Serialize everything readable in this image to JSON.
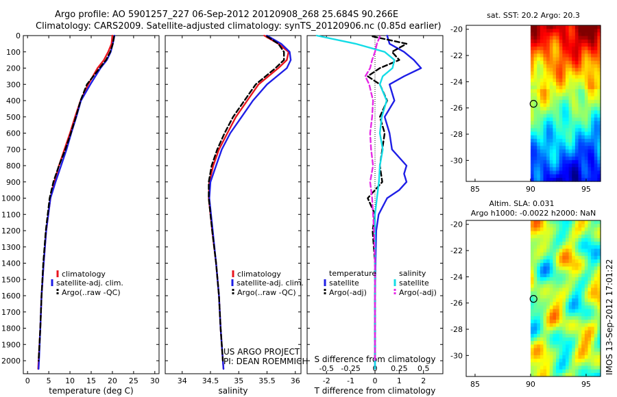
{
  "header": {
    "line1": "Argo profile: AO 5901257_227 06-Sep-2012 20120908_268 25.684S 90.266E",
    "line2": "Climatology: CARS2009. Satellite-adjusted climatology: synTS_20120906.nc (0.85d earlier)"
  },
  "footer": {
    "project": "US ARGO PROJECT",
    "pi": "PI: DEAN ROEMMICH",
    "stamp": "IMOS 13-Sep-2012 17:01:22"
  },
  "colors": {
    "climatology": "#e8141e",
    "satellite_adj": "#1e1ee6",
    "argo": "#000000",
    "salinity_sat": "#14dce6",
    "salinity_argo": "#e628e6"
  },
  "chart_data": [
    {
      "type": "line",
      "id": "temperature",
      "xlabel": "temperature (deg C)",
      "ylabel": "",
      "xlim": [
        -1,
        31
      ],
      "ylim": [
        2080,
        0
      ],
      "xticks": [
        0,
        5,
        10,
        15,
        20,
        25,
        30
      ],
      "yticks": [
        0,
        100,
        200,
        300,
        400,
        500,
        600,
        700,
        800,
        900,
        1000,
        1100,
        1200,
        1300,
        1400,
        1500,
        1600,
        1700,
        1800,
        1900,
        2000
      ],
      "legend": [
        "climatology",
        "satellite-adj. clim.",
        "Argo(..raw -QC)"
      ],
      "series": [
        {
          "name": "climatology",
          "style": "solid",
          "depth": [
            0,
            50,
            100,
            150,
            200,
            300,
            400,
            500,
            600,
            700,
            800,
            900,
            1000,
            1200,
            1400,
            1600,
            1800,
            2000,
            2050
          ],
          "values": [
            20.0,
            19.8,
            19.0,
            18.0,
            16.5,
            14.3,
            12.5,
            11.2,
            10.0,
            8.7,
            7.4,
            6.3,
            5.4,
            4.4,
            3.8,
            3.3,
            3.0,
            2.6,
            2.5
          ]
        },
        {
          "name": "satellite-adj. clim.",
          "style": "solid",
          "depth": [
            0,
            50,
            100,
            150,
            200,
            300,
            400,
            500,
            600,
            700,
            800,
            900,
            1000,
            1200,
            1400,
            1600,
            1800,
            2000,
            2050
          ],
          "values": [
            20.5,
            20.1,
            19.6,
            18.7,
            17.2,
            14.8,
            12.6,
            11.5,
            10.3,
            9.2,
            7.9,
            6.6,
            5.4,
            4.4,
            3.8,
            3.3,
            3.0,
            2.7,
            2.6
          ]
        },
        {
          "name": "Argo(..raw -QC)",
          "style": "dash",
          "depth": [
            5,
            50,
            100,
            150,
            200,
            300,
            400,
            500,
            600,
            700,
            800,
            900,
            1000,
            1200,
            1400,
            1600,
            1800,
            2000
          ],
          "values": [
            20.4,
            20.1,
            19.5,
            18.5,
            17.0,
            14.0,
            12.5,
            11.4,
            10.2,
            8.9,
            7.4,
            6.1,
            5.2,
            4.3,
            3.7,
            3.3,
            3.0,
            2.6
          ]
        }
      ]
    },
    {
      "type": "line",
      "id": "salinity",
      "xlabel": "salinity",
      "ylabel": "",
      "xlim": [
        33.7,
        36.1
      ],
      "ylim": [
        2080,
        0
      ],
      "xticks": [
        34,
        34.5,
        35,
        35.5,
        36
      ],
      "legend": [
        "climatology",
        "satellite-adj. clim.",
        "Argo(..raw -QC)"
      ],
      "series": [
        {
          "name": "climatology",
          "style": "solid",
          "depth": [
            0,
            50,
            100,
            150,
            200,
            300,
            400,
            500,
            600,
            700,
            800,
            900,
            1000,
            1200,
            1400,
            1600,
            1800,
            2000,
            2050
          ],
          "values": [
            35.45,
            35.7,
            35.88,
            35.85,
            35.7,
            35.35,
            35.15,
            34.95,
            34.8,
            34.65,
            34.55,
            34.48,
            34.47,
            34.53,
            34.6,
            34.65,
            34.68,
            34.72,
            34.73
          ]
        },
        {
          "name": "satellite-adj. clim.",
          "style": "solid",
          "depth": [
            0,
            50,
            100,
            150,
            200,
            300,
            400,
            500,
            600,
            700,
            800,
            900,
            1000,
            1200,
            1400,
            1600,
            1800,
            2000,
            2050
          ],
          "values": [
            35.5,
            35.75,
            35.9,
            35.92,
            35.85,
            35.5,
            35.25,
            35.05,
            34.85,
            34.7,
            34.6,
            34.5,
            34.48,
            34.54,
            34.6,
            34.65,
            34.68,
            34.72,
            34.73
          ]
        },
        {
          "name": "Argo(..raw -QC)",
          "style": "dash",
          "depth": [
            5,
            50,
            100,
            150,
            200,
            300,
            400,
            500,
            600,
            700,
            800,
            900,
            1000,
            1200,
            1400,
            1600,
            1800,
            2000
          ],
          "values": [
            35.5,
            35.7,
            35.8,
            35.8,
            35.65,
            35.3,
            35.1,
            34.9,
            34.75,
            34.62,
            34.52,
            34.47,
            34.47,
            34.53,
            34.6,
            34.65,
            34.68,
            34.72
          ]
        }
      ]
    },
    {
      "type": "line",
      "id": "difference",
      "xlabel": "T difference from climatology",
      "xlabel2": "S difference from climatology",
      "xlim": [
        -2.8,
        2.8
      ],
      "ylim": [
        2080,
        0
      ],
      "xticks": [
        -2,
        -1,
        0,
        1,
        2
      ],
      "xticks2": [
        -0.5,
        -0.25,
        0,
        0.25,
        0.5
      ],
      "legend_temperature": [
        "temperature",
        "satellite",
        "Argo(-adj)"
      ],
      "legend_salinity": [
        "salinity",
        "satellite",
        "Argo(-adj)"
      ],
      "series": [
        {
          "name": "temperature satellite",
          "style": "solid",
          "depth": [
            0,
            50,
            100,
            150,
            200,
            250,
            300,
            400,
            500,
            600,
            700,
            800,
            850,
            900,
            950,
            1000,
            1100,
            1200,
            1400,
            1600,
            1800,
            2000,
            2050
          ],
          "values": [
            0.5,
            0.6,
            1.2,
            1.6,
            1.9,
            1.2,
            0.6,
            0.8,
            0.4,
            0.6,
            0.7,
            1.3,
            1.2,
            1.3,
            1.0,
            0.5,
            0.15,
            0.05,
            0.02,
            0.0,
            0.0,
            0.0,
            0.0
          ]
        },
        {
          "name": "temperature Argo(-adj)",
          "style": "dash",
          "depth": [
            5,
            50,
            100,
            150,
            200,
            250,
            300,
            400,
            500,
            600,
            700,
            800,
            900,
            1000,
            1100,
            1200,
            1400,
            1600,
            1800,
            2000
          ],
          "values": [
            -0.1,
            1.3,
            0.7,
            1.0,
            0.2,
            -0.3,
            0.2,
            0.5,
            0.2,
            0.4,
            0.3,
            0.2,
            0.3,
            -0.3,
            0.0,
            -0.1,
            0.0,
            0.0,
            0.0,
            0.0
          ]
        },
        {
          "name": "salinity satellite",
          "style": "solid",
          "depth": [
            0,
            50,
            100,
            150,
            200,
            250,
            300,
            400,
            500,
            600,
            700,
            800,
            900,
            1000,
            1100,
            1200,
            1400,
            1600,
            1800,
            2000,
            2050
          ],
          "values": [
            -0.6,
            -0.2,
            0.1,
            0.2,
            0.18,
            0.08,
            0.05,
            0.12,
            0.07,
            0.05,
            0.08,
            0.05,
            0.04,
            0.02,
            0.0,
            0.0,
            0.0,
            0.0,
            0.0,
            0.0,
            0.0
          ]
        },
        {
          "name": "salinity Argo(-adj)",
          "style": "dash",
          "depth": [
            5,
            50,
            100,
            150,
            200,
            250,
            300,
            400,
            500,
            600,
            700,
            800,
            900,
            1000,
            1100,
            1200,
            1400,
            1600,
            1800,
            2000
          ],
          "values": [
            0.05,
            0.02,
            0.0,
            -0.03,
            -0.05,
            -0.1,
            -0.06,
            -0.02,
            -0.03,
            -0.05,
            -0.04,
            -0.02,
            -0.05,
            -0.03,
            -0.02,
            -0.01,
            0.0,
            0.0,
            0.0,
            0.0
          ]
        }
      ]
    }
  ],
  "maps": [
    {
      "id": "sst-map",
      "title": "sat. SST: 20.2 Argo: 20.3",
      "xticks": [
        85,
        90,
        95
      ],
      "yticks": [
        -20,
        -22,
        -24,
        -26,
        -28,
        -30
      ],
      "xlim": [
        84.2,
        96.3
      ],
      "ylim": [
        -31.6,
        -19.7
      ],
      "data_lon_start": 90,
      "marker": {
        "lon": 90.266,
        "lat": -25.684
      }
    },
    {
      "id": "sla-map",
      "title1": "Altim. SLA: 0.031",
      "title2": "Argo h1000: -0.0022 h2000: NaN",
      "xticks": [
        85,
        90,
        95
      ],
      "yticks": [
        -20,
        -22,
        -24,
        -26,
        -28,
        -30
      ],
      "xlim": [
        84.2,
        96.3
      ],
      "ylim": [
        -31.6,
        -19.7
      ],
      "data_lon_start": 90,
      "marker": {
        "lon": 90.266,
        "lat": -25.684
      }
    }
  ]
}
